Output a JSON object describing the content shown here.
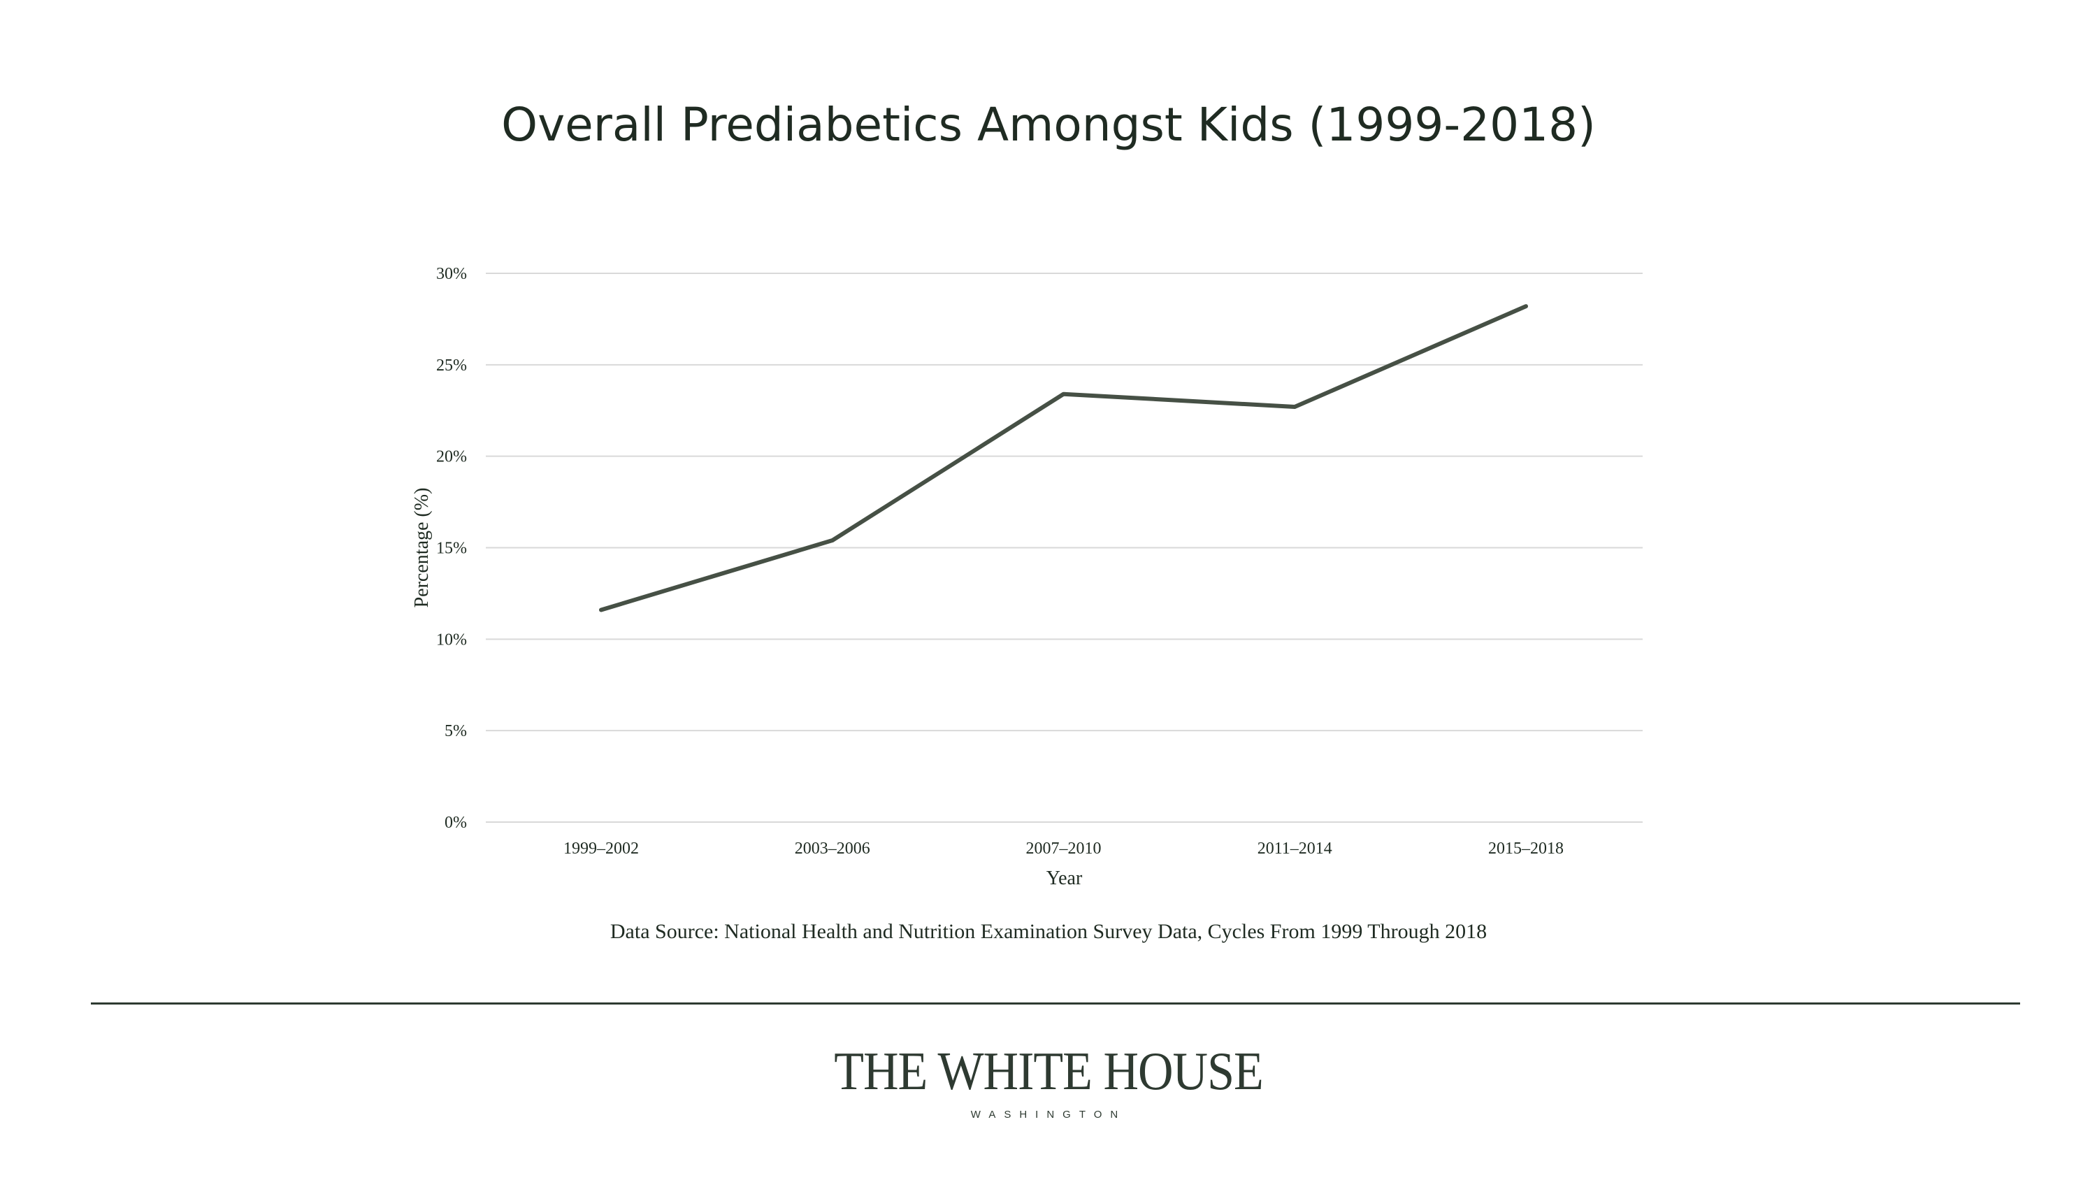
{
  "chart_data": {
    "type": "line",
    "title": "Overall Prediabetics Amongst Kids (1999-2018)",
    "xlabel": "Year",
    "ylabel": "Percentage (%)",
    "categories": [
      "1999–2002",
      "2003–2006",
      "2007–2010",
      "2011–2014",
      "2015–2018"
    ],
    "values": [
      11.6,
      15.4,
      23.4,
      22.7,
      28.2
    ],
    "ylim": [
      0,
      30
    ],
    "yticks": [
      0,
      5,
      10,
      15,
      20,
      25,
      30
    ],
    "ytick_labels": [
      "0%",
      "5%",
      "10%",
      "15%",
      "20%",
      "25%",
      "30%"
    ],
    "grid": true,
    "legend": "none",
    "line_color": "#465045",
    "grid_color": "#d9d9d9"
  },
  "footer": {
    "source": "Data Source: National Health and Nutrition Examination Survey Data, Cycles From 1999 Through 2018",
    "logo_main": "THE WHITE HOUSE",
    "logo_sub": "WASHINGTON"
  }
}
